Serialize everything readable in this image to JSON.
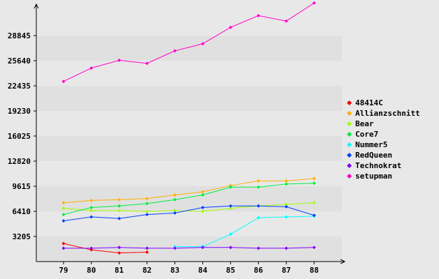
{
  "chart_data": {
    "type": "line",
    "title": "",
    "xlabel": "",
    "ylabel": "",
    "categories": [
      "79",
      "80",
      "81",
      "82",
      "83",
      "84",
      "85",
      "86",
      "87",
      "88"
    ],
    "y_ticks": [
      "3205",
      "6410",
      "9615",
      "12820",
      "16025",
      "19230",
      "22435",
      "25640",
      "28845"
    ],
    "ylim": [
      0,
      32500
    ],
    "grid": "horizontal alternating bands",
    "legend_position": "right",
    "series": [
      {
        "name": "48414C",
        "color": "#ff0000",
        "values": [
          2300,
          1500,
          1100,
          1200,
          null,
          null,
          null,
          null,
          null,
          null
        ]
      },
      {
        "name": "Allianzschnitt",
        "color": "#ffb000",
        "values": [
          7500,
          7800,
          7900,
          8050,
          8500,
          8900,
          9700,
          10300,
          10300,
          10600
        ]
      },
      {
        "name": "Bear",
        "color": "#a0ff00",
        "values": [
          6800,
          6500,
          6500,
          6400,
          6500,
          6400,
          6800,
          7100,
          7300,
          7500
        ]
      },
      {
        "name": "Core7",
        "color": "#00ee40",
        "values": [
          6000,
          6900,
          7100,
          7400,
          7900,
          8500,
          9500,
          9500,
          9900,
          10000
        ]
      },
      {
        "name": "Nummer5",
        "color": "#00ffff",
        "values": [
          null,
          null,
          null,
          null,
          1900,
          1900,
          3500,
          5600,
          5700,
          5800
        ]
      },
      {
        "name": "RedQueen",
        "color": "#0040ff",
        "values": [
          5200,
          5700,
          5500,
          6000,
          6200,
          6900,
          7100,
          7100,
          7000,
          5900
        ]
      },
      {
        "name": "Technokrat",
        "color": "#8000ff",
        "values": [
          1700,
          1700,
          1800,
          1700,
          1700,
          1800,
          1800,
          1700,
          1700,
          1800
        ]
      },
      {
        "name": "setupman",
        "color": "#ff00cc",
        "values": [
          23000,
          24700,
          25700,
          25300,
          26900,
          27800,
          29900,
          31400,
          30700,
          33000
        ]
      }
    ]
  }
}
